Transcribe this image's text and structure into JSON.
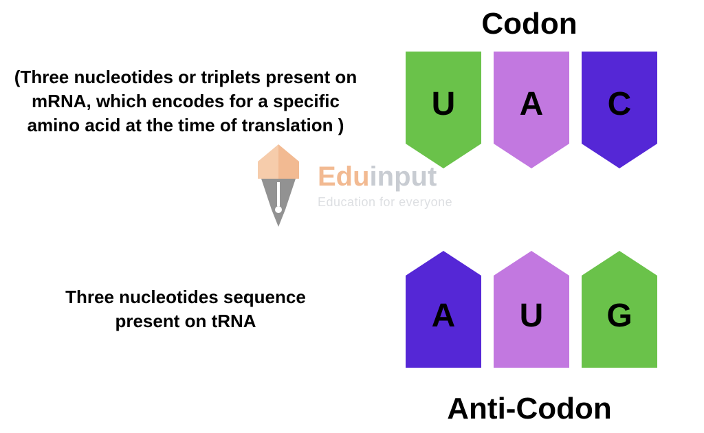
{
  "titles": {
    "top": "Codon",
    "bottom": "Anti-Codon"
  },
  "descriptions": {
    "top": "(Three nucleotides or triplets present on mRNA, which encodes for a specific amino acid at the time of translation )",
    "bottom": "Three nucleotides sequence present on tRNA"
  },
  "codon": {
    "type": "tag-row",
    "direction": "down",
    "items": [
      {
        "letter": "U",
        "color": "#6ac24a"
      },
      {
        "letter": "A",
        "color": "#c278e0"
      },
      {
        "letter": "C",
        "color": "#5527d6"
      }
    ]
  },
  "anticodon": {
    "type": "tag-row",
    "direction": "up",
    "items": [
      {
        "letter": "A",
        "color": "#5527d6"
      },
      {
        "letter": "U",
        "color": "#c278e0"
      },
      {
        "letter": "G",
        "color": "#6ac24a"
      }
    ]
  },
  "typography": {
    "title_fontsize": 44,
    "desc_fontsize": 26,
    "letter_fontsize": 48
  },
  "watermark": {
    "brand_edu": "Edu",
    "brand_input": "input",
    "tagline": "Education for everyone",
    "pen_color_orange": "#e8833a",
    "pen_color_dark": "#3a3a3a"
  },
  "layout": {
    "tag_width": 110,
    "tag_height": 170,
    "tag_gap": 18,
    "notch_depth": 36
  },
  "background_color": "#ffffff"
}
